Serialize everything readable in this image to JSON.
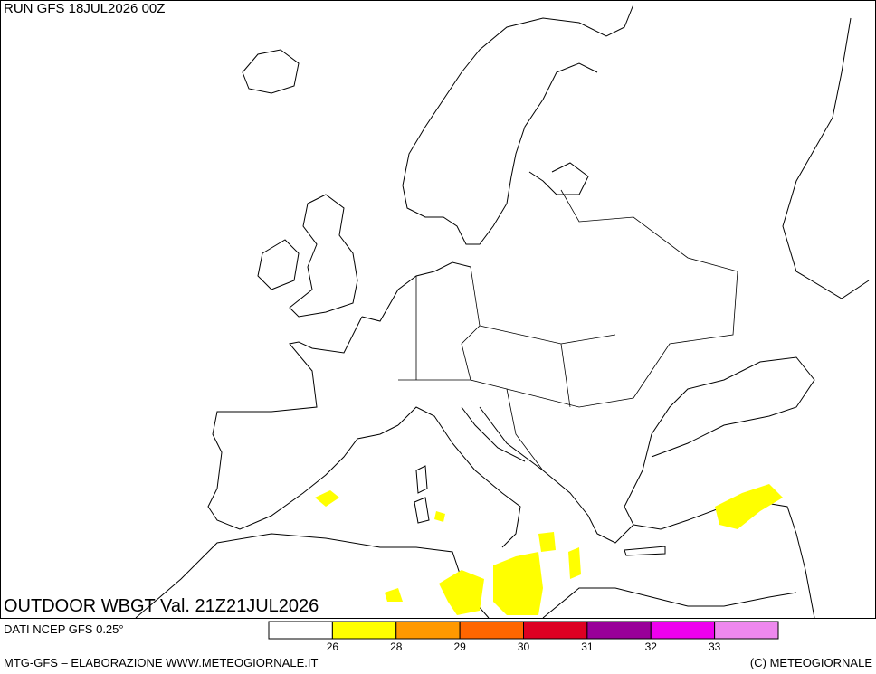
{
  "header": {
    "run": "RUN GFS 18JUL2026 00Z",
    "product": "OUTDOOR WBGT Val. 21Z21JUL2026"
  },
  "footer": {
    "source": "DATI NCEP GFS 0.25°",
    "credit": "MTG-GFS – ELABORAZIONE WWW.METEOGIORNALE.IT",
    "copyright": "(C) METEOGIORNALE"
  },
  "legend": {
    "colors": [
      "#ffffff",
      "#ffff00",
      "#ff9900",
      "#ff6600",
      "#dd0022",
      "#990099",
      "#ee00ee",
      "#ee88ee"
    ],
    "boundaries": [
      26,
      28,
      29,
      30,
      31,
      32,
      33
    ]
  }
}
